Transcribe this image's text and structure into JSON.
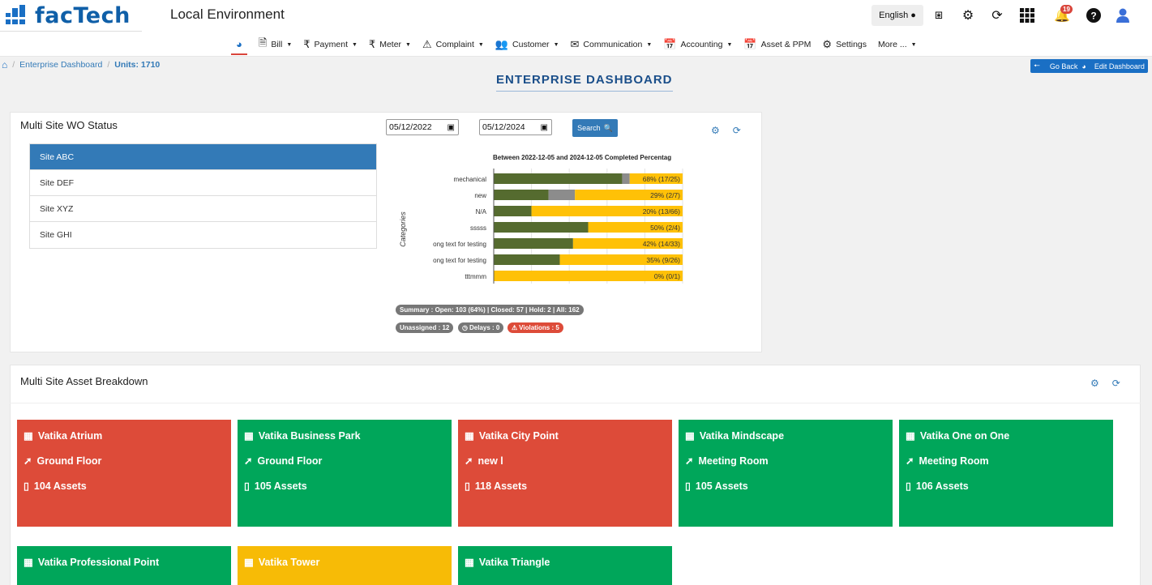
{
  "app": {
    "logo_text": "facTech",
    "title": "Local Environment",
    "language": "English",
    "notification_count": "19"
  },
  "menu": [
    {
      "label": "",
      "icon": "dashboard-icon"
    },
    {
      "label": "Bill",
      "icon": "file-icon"
    },
    {
      "label": "Payment",
      "icon": "rupee-icon"
    },
    {
      "label": "Meter",
      "icon": "rupee-icon"
    },
    {
      "label": "Complaint",
      "icon": "warning-icon"
    },
    {
      "label": "Customer",
      "icon": "users-icon"
    },
    {
      "label": "Communication",
      "icon": "envelope-icon"
    },
    {
      "label": "Accounting",
      "icon": "calendar-icon"
    },
    {
      "label": "Asset & PPM",
      "icon": "calendar-icon"
    },
    {
      "label": "Settings",
      "icon": "gear-icon"
    },
    {
      "label": "More ...",
      "icon": ""
    }
  ],
  "breadcrumb": {
    "dashboard": "Enterprise Dashboard",
    "units": "Units: 1710"
  },
  "page_title": "ENTERPRISE DASHBOARD",
  "header_buttons": {
    "go_back": "Go Back",
    "edit": "Edit Dashboard"
  },
  "wo_panel": {
    "title": "Multi Site WO Status",
    "sites": [
      "Site ABC",
      "Site DEF",
      "Site XYZ",
      "Site GHI"
    ],
    "from_date": "05/12/2022",
    "to_date": "05/12/2024",
    "search_label": "Search",
    "summary": "Summary :   Open: 103 (64%)   |  Closed: 57  |  Hold: 2  |  All: 162",
    "unassigned": "Unassigned : 12",
    "delays": "Delays : 0",
    "violations": "Violations : 5"
  },
  "chart_data": {
    "type": "bar",
    "title": "Between 2022-12-05 and 2024-12-05 Completed Percentag",
    "ylabel": "Categories",
    "categories": [
      "mechanical",
      "new",
      "N/A",
      "sssss",
      "ong text for testing",
      "ong text for testing",
      "tttmmm"
    ],
    "series": [
      {
        "color": "#556b2f",
        "values": [
          68,
          29,
          20,
          50,
          42,
          35,
          0
        ]
      },
      {
        "color": "#8c8c8c",
        "values": [
          4,
          14,
          0,
          0,
          0,
          0,
          0
        ]
      },
      {
        "color": "#ffc107",
        "values": [
          28,
          57,
          80,
          50,
          58,
          65,
          100
        ]
      }
    ],
    "labels": [
      "68% (17/25)",
      "29% (2/7)",
      "20% (13/66)",
      "50% (2/4)",
      "42% (14/33)",
      "35% (9/26)",
      "0% (0/1)"
    ],
    "xlim": [
      0,
      100
    ]
  },
  "asset_panel": {
    "title": "Multi Site Asset Breakdown",
    "cards": [
      {
        "name": "Vatika Atrium",
        "location": "Ground Floor",
        "assets": "104 Assets",
        "color": "red"
      },
      {
        "name": "Vatika Business Park",
        "location": "Ground Floor",
        "assets": "105 Assets",
        "color": "green"
      },
      {
        "name": "Vatika City Point",
        "location": "new l",
        "assets": "118 Assets",
        "color": "red"
      },
      {
        "name": "Vatika Mindscape",
        "location": "Meeting Room",
        "assets": "105 Assets",
        "color": "green"
      },
      {
        "name": "Vatika One on One",
        "location": "Meeting Room",
        "assets": "106 Assets",
        "color": "green"
      },
      {
        "name": "Vatika Professional Point",
        "color": "green"
      },
      {
        "name": "Vatika Tower",
        "color": "yellow"
      },
      {
        "name": "Vatika Triangle",
        "color": "green"
      }
    ]
  }
}
